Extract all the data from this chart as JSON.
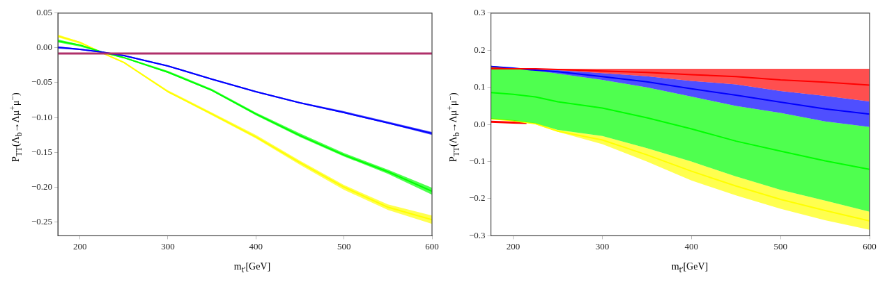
{
  "chart_data": [
    {
      "type": "line",
      "xlabel": "m$_{t′}$[GeV]",
      "ylabel": "P$_{TT}$(Λ$_{b}$→Λμ$^{+}$μ$^{−}$)",
      "x": [
        175,
        200,
        225,
        250,
        300,
        350,
        400,
        450,
        500,
        550,
        600
      ],
      "xlim": [
        175,
        600
      ],
      "xticks": [
        200,
        300,
        400,
        500,
        600
      ],
      "ylim": [
        -0.27,
        0.05
      ],
      "yticks": [
        {
          "value": -0.25,
          "label": "−0.25"
        },
        {
          "value": -0.2,
          "label": "−0.20"
        },
        {
          "value": -0.15,
          "label": "−0.15"
        },
        {
          "value": -0.1,
          "label": "−0.10"
        },
        {
          "value": -0.05,
          "label": "−0.05"
        },
        {
          "value": 0,
          "label": "0.00"
        },
        {
          "value": 0.05,
          "label": "0.05"
        }
      ],
      "series": [
        {
          "color": "#b0306a",
          "values": [
            -0.008,
            -0.008,
            -0.008,
            -0.008,
            -0.008,
            -0.008,
            -0.008,
            -0.008,
            -0.008,
            -0.008,
            -0.008
          ]
        },
        {
          "color": "#0000ff",
          "values": [
            0.001,
            -0.002,
            -0.006,
            -0.011,
            -0.026,
            -0.045,
            -0.063,
            -0.079,
            -0.093,
            -0.108,
            -0.123
          ],
          "lower": [
            -0.001,
            -0.003,
            -0.007,
            -0.012,
            -0.027,
            -0.046,
            -0.064,
            -0.08,
            -0.094,
            -0.109,
            -0.125
          ],
          "upper": [
            0.002,
            -0.001,
            -0.005,
            -0.01,
            -0.025,
            -0.044,
            -0.062,
            -0.078,
            -0.091,
            -0.106,
            -0.121
          ]
        },
        {
          "color": "#00ff00",
          "values": [
            0.01,
            0.004,
            -0.006,
            -0.014,
            -0.035,
            -0.061,
            -0.095,
            -0.126,
            -0.154,
            -0.178,
            -0.206
          ],
          "lower": [
            0.008,
            0.002,
            -0.007,
            -0.015,
            -0.036,
            -0.062,
            -0.097,
            -0.128,
            -0.156,
            -0.181,
            -0.211
          ],
          "upper": [
            0.012,
            0.005,
            -0.005,
            -0.013,
            -0.033,
            -0.059,
            -0.093,
            -0.123,
            -0.151,
            -0.175,
            -0.201
          ]
        },
        {
          "color": "#ffff00",
          "values": [
            0.017,
            0.008,
            -0.007,
            -0.021,
            -0.063,
            -0.095,
            -0.128,
            -0.165,
            -0.2,
            -0.229,
            -0.247
          ],
          "lower": [
            0.015,
            0.006,
            -0.008,
            -0.022,
            -0.064,
            -0.097,
            -0.13,
            -0.168,
            -0.204,
            -0.233,
            -0.253
          ],
          "upper": [
            0.019,
            0.009,
            -0.006,
            -0.02,
            -0.061,
            -0.093,
            -0.125,
            -0.162,
            -0.197,
            -0.225,
            -0.241
          ]
        }
      ]
    },
    {
      "type": "line",
      "xlabel": "m$_{t′}$[GeV]",
      "ylabel": "P$_{TT}$(Λ$_{b}$→Λμ$^{+}$μ$^{−}$)",
      "x": [
        175,
        200,
        225,
        250,
        300,
        350,
        400,
        450,
        500,
        550,
        600
      ],
      "xlim": [
        175,
        600
      ],
      "xticks": [
        200,
        300,
        400,
        500,
        600
      ],
      "ylim": [
        -0.3,
        0.3
      ],
      "yticks": [
        {
          "value": -0.3,
          "label": "−0.3"
        },
        {
          "value": -0.2,
          "label": "−0.2"
        },
        {
          "value": -0.1,
          "label": "−0.1"
        },
        {
          "value": 0,
          "label": "0.0"
        },
        {
          "value": 0.1,
          "label": "0.1"
        },
        {
          "value": 0.2,
          "label": "0.2"
        },
        {
          "value": 0.3,
          "label": "0.3"
        }
      ],
      "series": [
        {
          "color": "#ff0000",
          "values": [
            0.15,
            0.15,
            0.15,
            0.148,
            0.144,
            0.14,
            0.134,
            0.129,
            0.12,
            0.114,
            0.106
          ],
          "lower": [
            0.155,
            0.151,
            0.148,
            0.146,
            0.138,
            0.13,
            0.117,
            0.108,
            0.09,
            0.077,
            0.062
          ],
          "upper": [
            0.15,
            0.15,
            0.15,
            0.15,
            0.15,
            0.15,
            0.15,
            0.15,
            0.15,
            0.15,
            0.15
          ]
        },
        {
          "color": "#0000ff",
          "values": [
            0.156,
            0.152,
            0.146,
            0.142,
            0.129,
            0.115,
            0.096,
            0.079,
            0.06,
            0.042,
            0.028
          ],
          "lower": [
            0.158,
            0.152,
            0.145,
            0.137,
            0.12,
            0.1,
            0.075,
            0.05,
            0.031,
            0.008,
            -0.007
          ],
          "upper": [
            0.155,
            0.151,
            0.148,
            0.146,
            0.138,
            0.13,
            0.117,
            0.108,
            0.09,
            0.077,
            0.062
          ]
        },
        {
          "color": "#00ff00",
          "values": [
            0.086,
            0.081,
            0.074,
            0.061,
            0.044,
            0.018,
            -0.012,
            -0.045,
            -0.072,
            -0.098,
            -0.121
          ],
          "lower": [
            0.015,
            0.01,
            0.003,
            -0.015,
            -0.031,
            -0.064,
            -0.1,
            -0.14,
            -0.176,
            -0.205,
            -0.235
          ],
          "upper": [
            0.158,
            0.152,
            0.145,
            0.137,
            0.12,
            0.1,
            0.075,
            0.05,
            0.031,
            0.008,
            -0.007
          ]
        },
        {
          "color": "#ffff00",
          "values": [
            0.015,
            0.01,
            0.002,
            -0.018,
            -0.042,
            -0.082,
            -0.126,
            -0.166,
            -0.202,
            -0.232,
            -0.26
          ],
          "lower": [
            0.015,
            0.01,
            0.0,
            -0.02,
            -0.053,
            -0.1,
            -0.151,
            -0.191,
            -0.227,
            -0.258,
            -0.284
          ],
          "upper": [
            0.015,
            0.01,
            0.003,
            -0.015,
            -0.031,
            -0.064,
            -0.1,
            -0.14,
            -0.176,
            -0.205,
            -0.235
          ]
        },
        {
          "color": "#ff0000",
          "x": [
            175,
            200,
            215
          ],
          "values": [
            0.007,
            0.005,
            0.004
          ]
        }
      ]
    }
  ]
}
